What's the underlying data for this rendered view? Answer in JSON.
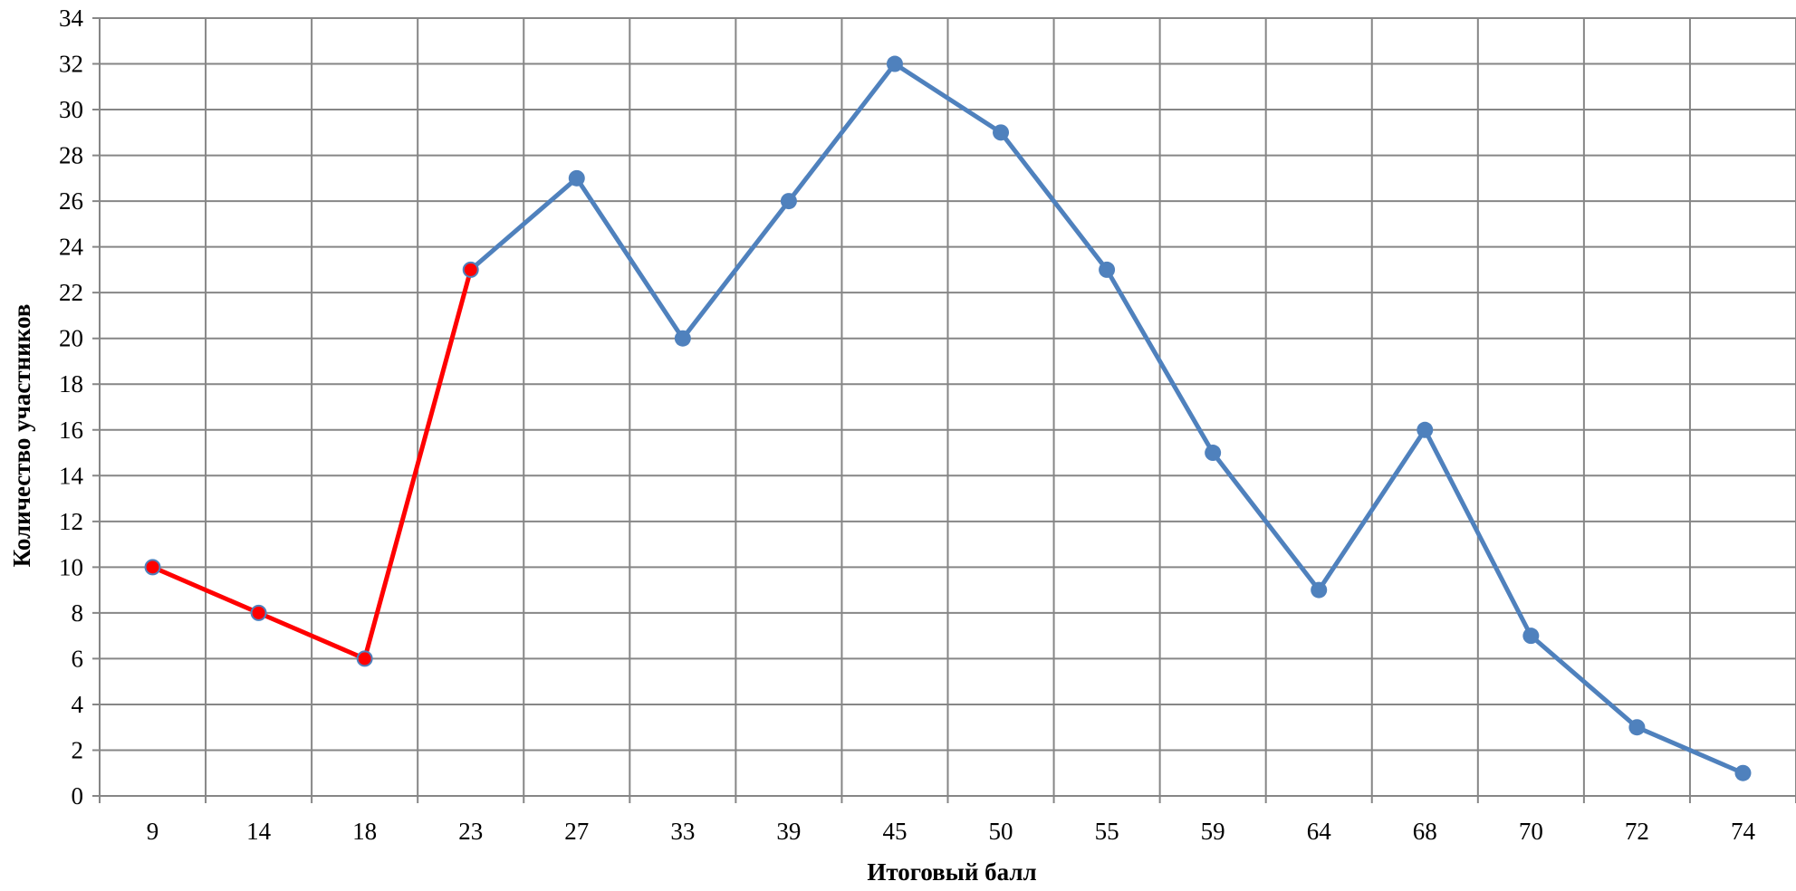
{
  "chart_data": {
    "type": "line",
    "title": "",
    "xlabel": "Итоговый балл",
    "ylabel": "Количество участников",
    "categories": [
      "9",
      "14",
      "18",
      "23",
      "27",
      "33",
      "39",
      "45",
      "50",
      "55",
      "59",
      "64",
      "68",
      "70",
      "72",
      "74"
    ],
    "values": [
      10,
      8,
      6,
      23,
      27,
      20,
      26,
      32,
      29,
      23,
      15,
      9,
      16,
      7,
      3,
      1
    ],
    "highlight": {
      "color": "#ff0000",
      "from_category": "9",
      "to_category": "23"
    },
    "series_color": "#4f81bd",
    "ylim": [
      0,
      34
    ],
    "yticks": [
      0,
      2,
      4,
      6,
      8,
      10,
      12,
      14,
      16,
      18,
      20,
      22,
      24,
      26,
      28,
      30,
      32,
      34
    ],
    "grid": true,
    "legend": "none",
    "gridline_color": "#868686"
  }
}
